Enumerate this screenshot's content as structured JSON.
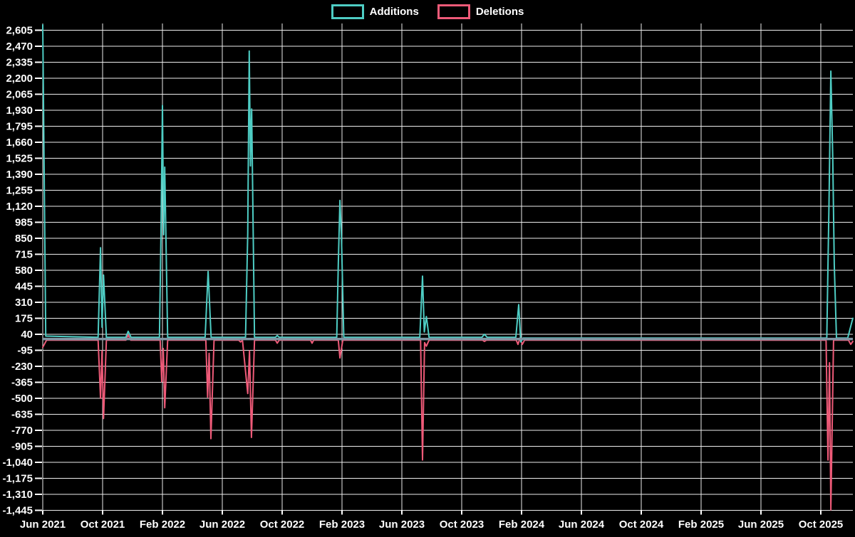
{
  "legend": {
    "position": "top-center",
    "items": [
      {
        "label": "Additions",
        "color": "#4ecdc4"
      },
      {
        "label": "Deletions",
        "color": "#ee5a78"
      }
    ]
  },
  "colors": {
    "background": "#000000",
    "grid": "#ededed",
    "text": "#ffffff",
    "zero_line": "#7e95a3",
    "additions": "#4ecdc4",
    "deletions": "#ee5a78"
  },
  "chart_data": {
    "type": "line",
    "title": "",
    "xlabel": "",
    "ylabel": "",
    "grid": true,
    "x_unit": "months_since_jun_2021",
    "x_axis": {
      "tick_months": [
        0,
        4,
        8,
        12,
        16,
        20,
        24,
        28,
        32,
        36,
        40,
        44,
        48,
        52
      ],
      "tick_labels": [
        "Jun 2021",
        "Oct 2021",
        "Feb 2022",
        "Jun 2022",
        "Oct 2022",
        "Feb 2023",
        "Jun 2023",
        "Oct 2023",
        "Feb 2024",
        "Jun 2024",
        "Oct 2024",
        "Feb 2025",
        "Jun 2025",
        "Oct 2025"
      ],
      "range_months": [
        0,
        54.14
      ]
    },
    "y_axis": {
      "min": -1445,
      "max": 2605,
      "step": 135,
      "tick_values": [
        2605,
        2470,
        2335,
        2200,
        2065,
        1930,
        1795,
        1660,
        1525,
        1390,
        1255,
        1120,
        985,
        850,
        715,
        580,
        445,
        310,
        175,
        40,
        -95,
        -230,
        -365,
        -500,
        -635,
        -770,
        -905,
        -1040,
        -1175,
        -1310,
        -1445
      ],
      "tick_labels": [
        "2,605",
        "2,470",
        "2,335",
        "2,200",
        "2,065",
        "1,930",
        "1,795",
        "1,660",
        "1,525",
        "1,390",
        "1,255",
        "1,120",
        "985",
        "850",
        "715",
        "580",
        "445",
        "310",
        "175",
        "40",
        "-95",
        "-230",
        "-365",
        "-500",
        "-635",
        "-770",
        "-905",
        "-1,040",
        "-1,175",
        "-1,310",
        "-1,445"
      ]
    },
    "series": [
      {
        "name": "Additions",
        "color": "#4ecdc4",
        "points": [
          [
            0,
            2650
          ],
          [
            0.2,
            25
          ],
          [
            3.7,
            15
          ],
          [
            3.86,
            770
          ],
          [
            3.96,
            100
          ],
          [
            4.06,
            540
          ],
          [
            4.25,
            15
          ],
          [
            5.55,
            15
          ],
          [
            5.71,
            65
          ],
          [
            5.9,
            15
          ],
          [
            7.8,
            15
          ],
          [
            7.9,
            870
          ],
          [
            8.0,
            1970
          ],
          [
            8.08,
            880
          ],
          [
            8.15,
            1450
          ],
          [
            8.35,
            15
          ],
          [
            10.85,
            15
          ],
          [
            11.05,
            570
          ],
          [
            11.25,
            15
          ],
          [
            13.55,
            15
          ],
          [
            13.7,
            890
          ],
          [
            13.8,
            2430
          ],
          [
            13.88,
            1460
          ],
          [
            13.96,
            1940
          ],
          [
            14.15,
            15
          ],
          [
            15.55,
            15
          ],
          [
            15.67,
            30
          ],
          [
            15.8,
            15
          ],
          [
            19.65,
            15
          ],
          [
            19.75,
            630
          ],
          [
            19.86,
            1170
          ],
          [
            19.96,
            870
          ],
          [
            20.12,
            15
          ],
          [
            25.2,
            15
          ],
          [
            25.38,
            530
          ],
          [
            25.5,
            60
          ],
          [
            25.64,
            190
          ],
          [
            25.82,
            15
          ],
          [
            29.35,
            15
          ],
          [
            29.52,
            40
          ],
          [
            29.7,
            15
          ],
          [
            31.62,
            15
          ],
          [
            31.81,
            290
          ],
          [
            31.95,
            -25
          ],
          [
            32.1,
            8
          ],
          [
            52.4,
            8
          ],
          [
            52.55,
            1140
          ],
          [
            52.67,
            2260
          ],
          [
            52.8,
            1520
          ],
          [
            52.9,
            630
          ],
          [
            53.05,
            8
          ],
          [
            53.8,
            8
          ],
          [
            54.14,
            175
          ]
        ]
      },
      {
        "name": "Deletions",
        "color": "#ee5a78",
        "points": [
          [
            0,
            -70
          ],
          [
            0.25,
            -10
          ],
          [
            3.7,
            -10
          ],
          [
            3.86,
            -500
          ],
          [
            3.96,
            -100
          ],
          [
            4.06,
            -670
          ],
          [
            4.25,
            -10
          ],
          [
            5.55,
            -10
          ],
          [
            5.71,
            35
          ],
          [
            5.88,
            -10
          ],
          [
            7.85,
            -10
          ],
          [
            7.95,
            -360
          ],
          [
            8.05,
            -80
          ],
          [
            8.15,
            -580
          ],
          [
            8.35,
            -10
          ],
          [
            10.9,
            -10
          ],
          [
            11.02,
            -490
          ],
          [
            11.12,
            -120
          ],
          [
            11.24,
            -840
          ],
          [
            11.45,
            -10
          ],
          [
            13.1,
            -10
          ],
          [
            13.22,
            -25
          ],
          [
            13.35,
            -10
          ],
          [
            13.7,
            -460
          ],
          [
            13.82,
            -100
          ],
          [
            13.95,
            -830
          ],
          [
            14.15,
            -10
          ],
          [
            15.55,
            -10
          ],
          [
            15.67,
            -35
          ],
          [
            15.8,
            -10
          ],
          [
            17.9,
            -10
          ],
          [
            18.0,
            -35
          ],
          [
            18.1,
            -10
          ],
          [
            19.75,
            -10
          ],
          [
            19.86,
            -160
          ],
          [
            20.05,
            -10
          ],
          [
            25.25,
            -10
          ],
          [
            25.38,
            -1020
          ],
          [
            25.52,
            -30
          ],
          [
            25.64,
            -60
          ],
          [
            25.82,
            -10
          ],
          [
            29.4,
            -10
          ],
          [
            29.52,
            -20
          ],
          [
            29.65,
            -10
          ],
          [
            31.65,
            -10
          ],
          [
            31.76,
            -45
          ],
          [
            31.9,
            10
          ],
          [
            32.05,
            -45
          ],
          [
            32.2,
            -10
          ],
          [
            52.35,
            -10
          ],
          [
            52.48,
            -1020
          ],
          [
            52.58,
            -200
          ],
          [
            52.67,
            -1440
          ],
          [
            52.85,
            -10
          ],
          [
            53.85,
            -10
          ],
          [
            54.0,
            -45
          ],
          [
            54.14,
            -20
          ]
        ]
      }
    ]
  }
}
